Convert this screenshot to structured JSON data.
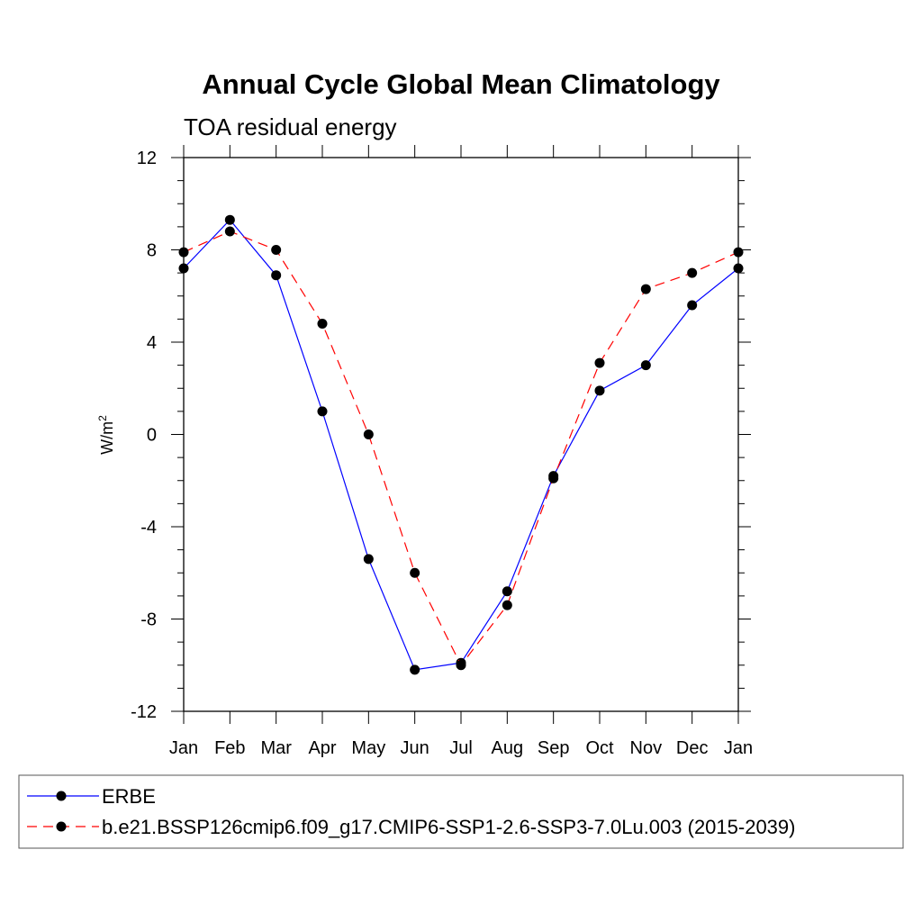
{
  "chart_data": {
    "type": "line",
    "title": "Annual Cycle Global Mean Climatology",
    "subtitle": "TOA residual energy",
    "xlabel": "",
    "ylabel": "W/m",
    "ylabel_superscript": "2",
    "categories": [
      "Jan",
      "Feb",
      "Mar",
      "Apr",
      "May",
      "Jun",
      "Jul",
      "Aug",
      "Sep",
      "Oct",
      "Nov",
      "Dec",
      "Jan"
    ],
    "ylim": [
      -12,
      12
    ],
    "yticks": [
      -12,
      -8,
      -4,
      0,
      4,
      8,
      12
    ],
    "ytick_labels": [
      "-12",
      "-8",
      "-4",
      "0",
      "4",
      "8",
      "12"
    ],
    "grid": false,
    "legend_position": "bottom",
    "series": [
      {
        "name": "ERBE",
        "color": "#0000ff",
        "dash": "solid",
        "marker": "filled-circle",
        "values": [
          7.2,
          9.3,
          6.9,
          1.0,
          -5.4,
          -10.2,
          -9.9,
          -6.8,
          -1.8,
          1.9,
          3.0,
          5.6,
          7.2
        ]
      },
      {
        "name": "b.e21.BSSP126cmip6.f09_g17.CMIP6-SSP1-2.6-SSP3-7.0Lu.003 (2015-2039)",
        "color": "#ff0000",
        "dash": "dashed",
        "marker": "filled-circle",
        "values": [
          7.9,
          8.8,
          8.0,
          4.8,
          0.0,
          -6.0,
          -10.0,
          -7.4,
          -1.9,
          3.1,
          6.3,
          7.0,
          7.9
        ]
      }
    ]
  }
}
